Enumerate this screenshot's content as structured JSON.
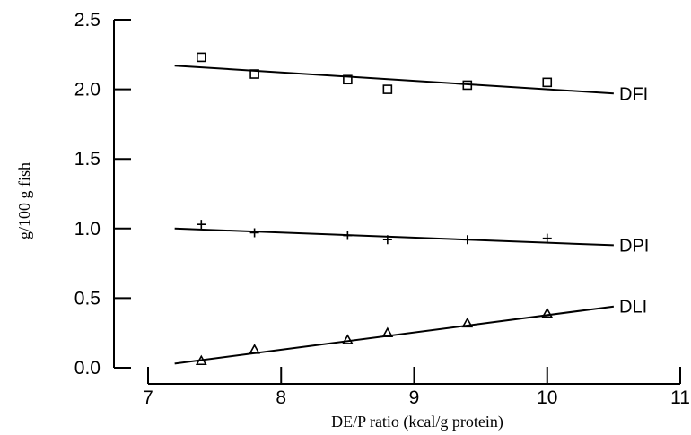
{
  "chart_data": {
    "type": "scatter",
    "xlabel": "DE/P ratio (kcal/g protein)",
    "ylabel": "g/100 g fish",
    "xlim": [
      7,
      11
    ],
    "ylim": [
      0,
      2.5
    ],
    "xticks": [
      7,
      8,
      9,
      10,
      11
    ],
    "yticks": [
      0.0,
      0.5,
      1.0,
      1.5,
      2.0,
      2.5
    ],
    "ytick_labels": [
      "0.0",
      "0.5",
      "1.0",
      "1.5",
      "2.0",
      "2.5"
    ],
    "grid": false,
    "series": [
      {
        "name": "DFI",
        "marker": "square",
        "points": [
          [
            7.4,
            2.23
          ],
          [
            7.8,
            2.11
          ],
          [
            8.5,
            2.07
          ],
          [
            8.8,
            2.0
          ],
          [
            9.4,
            2.03
          ],
          [
            10.0,
            2.05
          ]
        ],
        "fit": [
          [
            7.2,
            2.17
          ],
          [
            10.5,
            1.97
          ]
        ]
      },
      {
        "name": "DPI",
        "marker": "plus",
        "points": [
          [
            7.4,
            1.03
          ],
          [
            7.8,
            0.97
          ],
          [
            8.5,
            0.95
          ],
          [
            8.8,
            0.92
          ],
          [
            9.4,
            0.92
          ],
          [
            10.0,
            0.93
          ]
        ],
        "fit": [
          [
            7.2,
            1.0
          ],
          [
            10.5,
            0.88
          ]
        ]
      },
      {
        "name": "DLI",
        "marker": "triangle",
        "points": [
          [
            7.4,
            0.05
          ],
          [
            7.8,
            0.13
          ],
          [
            8.5,
            0.2
          ],
          [
            8.8,
            0.25
          ],
          [
            9.4,
            0.32
          ],
          [
            10.0,
            0.39
          ]
        ],
        "fit": [
          [
            7.2,
            0.03
          ],
          [
            10.5,
            0.44
          ]
        ]
      }
    ]
  }
}
